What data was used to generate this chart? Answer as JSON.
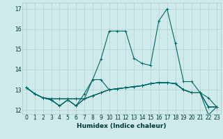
{
  "xlabel": "Humidex (Indice chaleur)",
  "ylabel": "",
  "xlim": [
    -0.5,
    23.5
  ],
  "ylim": [
    11.8,
    17.3
  ],
  "bg_color": "#ceeaea",
  "grid_color": "#b8d4d4",
  "line_color": "#006666",
  "xticks": [
    0,
    1,
    2,
    3,
    4,
    5,
    6,
    7,
    8,
    9,
    10,
    11,
    12,
    13,
    14,
    15,
    16,
    17,
    18,
    19,
    20,
    21,
    22,
    23
  ],
  "yticks": [
    12,
    13,
    14,
    15,
    16,
    17
  ],
  "lines": [
    {
      "x": [
        0,
        1,
        2,
        3,
        4,
        5,
        6,
        7,
        8,
        9,
        10,
        11,
        12,
        13,
        14,
        15,
        16,
        17,
        18,
        19,
        20,
        21,
        22,
        23
      ],
      "y": [
        13.1,
        12.8,
        12.6,
        12.55,
        12.55,
        12.55,
        12.55,
        12.55,
        12.7,
        12.85,
        13.0,
        13.05,
        13.1,
        13.15,
        13.2,
        13.3,
        13.35,
        13.35,
        13.3,
        13.0,
        12.85,
        12.85,
        12.6,
        12.15
      ]
    },
    {
      "x": [
        0,
        1,
        2,
        3,
        4,
        5,
        6,
        7,
        8,
        9,
        10,
        11,
        12,
        13,
        14,
        15,
        16,
        17,
        18,
        19,
        20,
        21,
        22,
        23
      ],
      "y": [
        13.1,
        12.8,
        12.6,
        12.55,
        12.55,
        12.55,
        12.55,
        12.55,
        12.7,
        12.85,
        13.0,
        13.05,
        13.1,
        13.15,
        13.2,
        13.3,
        13.35,
        13.35,
        13.3,
        13.0,
        12.85,
        12.85,
        12.15,
        12.15
      ]
    },
    {
      "x": [
        0,
        1,
        2,
        3,
        4,
        5,
        6,
        7,
        8,
        9,
        10,
        11,
        12,
        13,
        14,
        15,
        16,
        17,
        18,
        19,
        20,
        21,
        22,
        23
      ],
      "y": [
        13.1,
        12.8,
        12.6,
        12.5,
        12.2,
        12.5,
        12.2,
        12.55,
        12.7,
        12.85,
        13.0,
        13.05,
        13.1,
        13.15,
        13.2,
        13.3,
        13.35,
        13.35,
        13.3,
        13.0,
        12.85,
        12.85,
        12.15,
        12.15
      ]
    },
    {
      "x": [
        0,
        1,
        2,
        3,
        4,
        5,
        6,
        7,
        8,
        9,
        10,
        11,
        12,
        13,
        14,
        15,
        16,
        17,
        18,
        19,
        20,
        21,
        22,
        23
      ],
      "y": [
        13.1,
        12.8,
        12.6,
        12.5,
        12.2,
        12.5,
        12.2,
        12.8,
        13.5,
        13.5,
        13.0,
        13.05,
        13.1,
        13.15,
        13.2,
        13.3,
        13.35,
        13.35,
        13.3,
        13.0,
        12.85,
        12.85,
        12.15,
        12.15
      ]
    },
    {
      "x": [
        0,
        1,
        2,
        3,
        4,
        5,
        6,
        7,
        8,
        9,
        10,
        11,
        12,
        13,
        14,
        15,
        16,
        17,
        18,
        19,
        20,
        21,
        22,
        23
      ],
      "y": [
        13.1,
        12.8,
        12.6,
        12.5,
        12.2,
        12.5,
        12.2,
        12.55,
        13.5,
        14.5,
        15.9,
        15.9,
        15.9,
        14.55,
        14.3,
        14.2,
        16.4,
        17.0,
        15.3,
        13.4,
        13.4,
        12.85,
        11.75,
        12.15
      ]
    }
  ]
}
